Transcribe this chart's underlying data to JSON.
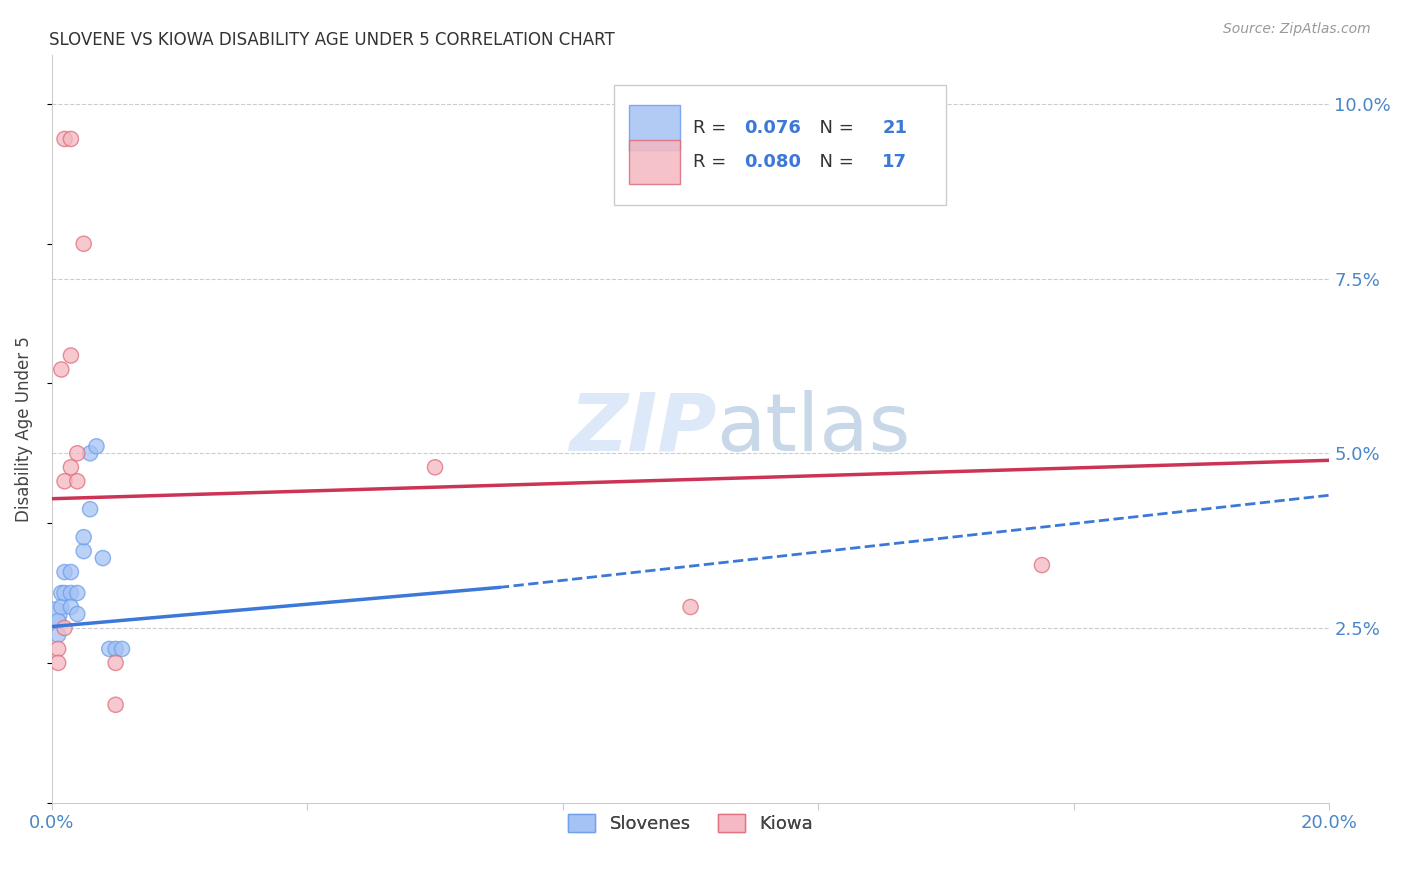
{
  "title": "SLOVENE VS KIOWA DISABILITY AGE UNDER 5 CORRELATION CHART",
  "source": "Source: ZipAtlas.com",
  "ylabel": "Disability Age Under 5",
  "xlim": [
    0.0,
    0.2
  ],
  "ylim": [
    0.0,
    0.107
  ],
  "xticks": [
    0.0,
    0.04,
    0.08,
    0.12,
    0.16,
    0.2
  ],
  "xticklabels": [
    "0.0%",
    "",
    "",
    "",
    "",
    "20.0%"
  ],
  "yticks": [
    0.025,
    0.05,
    0.075,
    0.1
  ],
  "yticklabels": [
    "2.5%",
    "5.0%",
    "7.5%",
    "10.0%"
  ],
  "slovene_R": "0.076",
  "slovene_N": "21",
  "kiowa_R": "0.080",
  "kiowa_N": "17",
  "slovene_color": "#a4c2f4",
  "kiowa_color": "#f4b8c1",
  "slovene_edge_color": "#6d9eeb",
  "kiowa_edge_color": "#e06c7a",
  "slovene_line_color": "#3c78d8",
  "kiowa_line_color": "#cc3355",
  "legend_text_color": "#3c78d8",
  "slovene_points": [
    [
      0.0005,
      0.027
    ],
    [
      0.001,
      0.026
    ],
    [
      0.001,
      0.024
    ],
    [
      0.0015,
      0.03
    ],
    [
      0.0015,
      0.028
    ],
    [
      0.002,
      0.03
    ],
    [
      0.002,
      0.033
    ],
    [
      0.003,
      0.033
    ],
    [
      0.003,
      0.03
    ],
    [
      0.003,
      0.028
    ],
    [
      0.004,
      0.03
    ],
    [
      0.004,
      0.027
    ],
    [
      0.005,
      0.036
    ],
    [
      0.005,
      0.038
    ],
    [
      0.006,
      0.042
    ],
    [
      0.006,
      0.05
    ],
    [
      0.007,
      0.051
    ],
    [
      0.008,
      0.035
    ],
    [
      0.009,
      0.022
    ],
    [
      0.01,
      0.022
    ],
    [
      0.011,
      0.022
    ]
  ],
  "slovene_sizes": [
    200,
    80,
    80,
    80,
    80,
    80,
    80,
    80,
    80,
    80,
    80,
    80,
    80,
    80,
    80,
    80,
    80,
    80,
    80,
    80,
    80
  ],
  "kiowa_points": [
    [
      0.001,
      0.022
    ],
    [
      0.001,
      0.02
    ],
    [
      0.002,
      0.025
    ],
    [
      0.002,
      0.046
    ],
    [
      0.003,
      0.048
    ],
    [
      0.003,
      0.064
    ],
    [
      0.004,
      0.046
    ],
    [
      0.004,
      0.05
    ],
    [
      0.0015,
      0.062
    ],
    [
      0.002,
      0.095
    ],
    [
      0.003,
      0.095
    ],
    [
      0.005,
      0.08
    ],
    [
      0.01,
      0.02
    ],
    [
      0.1,
      0.028
    ],
    [
      0.155,
      0.034
    ],
    [
      0.06,
      0.048
    ],
    [
      0.01,
      0.014
    ]
  ],
  "kiowa_sizes": [
    80,
    80,
    80,
    80,
    80,
    80,
    80,
    80,
    80,
    80,
    80,
    80,
    80,
    80,
    80,
    80,
    80
  ],
  "slovene_trendline_solid": [
    [
      0.0,
      0.0252
    ],
    [
      0.07,
      0.0308
    ]
  ],
  "slovene_trendline_dashed": [
    [
      0.07,
      0.0308
    ],
    [
      0.2,
      0.044
    ]
  ],
  "kiowa_trendline": [
    [
      0.0,
      0.0435
    ],
    [
      0.2,
      0.049
    ]
  ],
  "background_color": "#ffffff",
  "grid_color": "#cccccc",
  "axis_label_color": "#4a86c8"
}
